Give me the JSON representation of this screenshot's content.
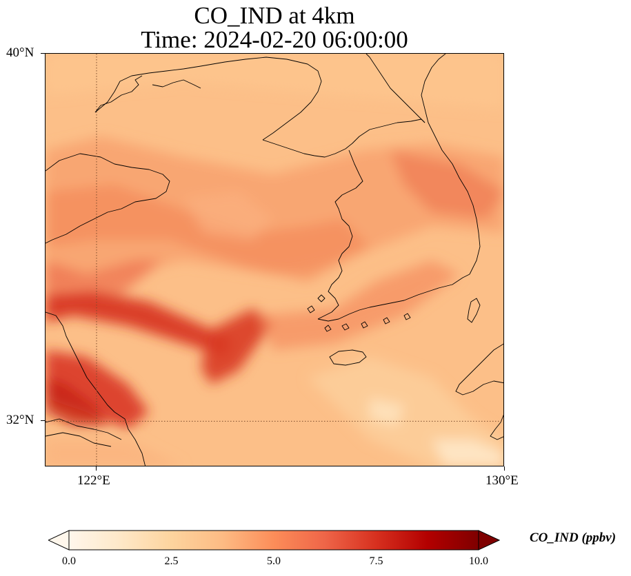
{
  "title": {
    "line1": "CO_IND at 4km",
    "line2": "Time: 2024-02-20 06:00:00"
  },
  "map": {
    "variable": "CO_IND",
    "height": "4km",
    "time": "2024-02-20 06:00:00",
    "extent": {
      "lon": [
        121,
        130
      ],
      "lat": [
        31,
        40
      ]
    },
    "gridlines": {
      "lon": [
        122
      ],
      "lat": [
        32
      ],
      "style": "dotted"
    },
    "lat_ticks": [
      {
        "value": 40,
        "label": "40°N"
      },
      {
        "value": 32,
        "label": "32°N"
      }
    ],
    "lon_ticks": [
      {
        "value": 122,
        "label": "122°E"
      },
      {
        "value": 130,
        "label": "130°E"
      }
    ],
    "colormap": "OrRd",
    "high_concentration_band": "southwest to northeast plume across the Yellow Sea from eastern China (~122°E, 33–34°N)"
  },
  "colorbar": {
    "label": "CO_IND (ppbv)",
    "min": 0.0,
    "max": 10.0,
    "extend": "both",
    "ticks": [
      "0.0",
      "2.5",
      "5.0",
      "7.5",
      "10.0"
    ],
    "colors": [
      "#fff7ec",
      "#fee8c8",
      "#fdd49e",
      "#fdbb84",
      "#fc8d59",
      "#ef6548",
      "#d7301f",
      "#b30000",
      "#7f0000"
    ]
  }
}
